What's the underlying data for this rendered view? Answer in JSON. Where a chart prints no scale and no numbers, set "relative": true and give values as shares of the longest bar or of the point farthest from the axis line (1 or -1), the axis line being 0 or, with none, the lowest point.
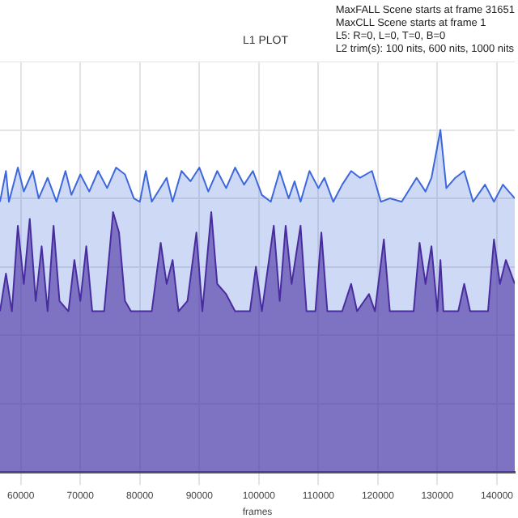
{
  "chart_data": {
    "type": "area",
    "title": "L1 PLOT",
    "xlabel": "frames",
    "relative": true,
    "legend": false,
    "grid": true,
    "marker": "none",
    "line_style": "solid",
    "annotations": [
      "MaxFALL Scene starts at frame 31651",
      "MaxCLL Scene starts at frame 1",
      "L5: R=0, L=0, T=0, B=0",
      "L2 trim(s): 100 nits, 600 nits, 1000 nits"
    ],
    "xlim": [
      56500,
      143000
    ],
    "xticks": [
      60000,
      70000,
      80000,
      90000,
      100000,
      110000,
      120000,
      130000,
      140000
    ],
    "series": [
      {
        "color": "#3d68dd",
        "x": [
          56500,
          57500,
          58000,
          59500,
          60500,
          62000,
          63000,
          64500,
          66000,
          67500,
          68500,
          70000,
          71500,
          73000,
          74500,
          76000,
          77500,
          79000,
          80000,
          81000,
          82000,
          84500,
          85500,
          87000,
          88500,
          90000,
          91500,
          93000,
          94500,
          96000,
          97500,
          99000,
          100500,
          102000,
          103500,
          105000,
          106000,
          107000,
          108500,
          110000,
          111000,
          112500,
          114000,
          115500,
          117000,
          119000,
          120500,
          122000,
          124000,
          126500,
          128000,
          129000,
          130500,
          131500,
          133000,
          134500,
          136000,
          138000,
          139500,
          141000,
          143000
        ],
        "values": [
          0.79,
          0.88,
          0.79,
          0.89,
          0.82,
          0.88,
          0.8,
          0.86,
          0.79,
          0.88,
          0.81,
          0.87,
          0.82,
          0.88,
          0.83,
          0.89,
          0.87,
          0.8,
          0.79,
          0.88,
          0.79,
          0.86,
          0.79,
          0.88,
          0.85,
          0.89,
          0.82,
          0.88,
          0.83,
          0.89,
          0.84,
          0.88,
          0.81,
          0.79,
          0.88,
          0.8,
          0.85,
          0.79,
          0.88,
          0.83,
          0.86,
          0.79,
          0.84,
          0.88,
          0.86,
          0.88,
          0.79,
          0.8,
          0.79,
          0.86,
          0.82,
          0.86,
          1,
          0.83,
          0.86,
          0.88,
          0.79,
          0.84,
          0.79,
          0.84,
          0.8
        ]
      },
      {
        "color": "#4e1a8c",
        "x": [
          56500,
          57500,
          58500,
          59500,
          60500,
          61500,
          62500,
          63500,
          64500,
          65500,
          66500,
          68000,
          69000,
          70000,
          71000,
          72000,
          74000,
          75500,
          76500,
          77500,
          78500,
          80000,
          82000,
          83500,
          84500,
          85500,
          86500,
          88000,
          89500,
          90500,
          92000,
          93000,
          94500,
          96000,
          98500,
          99500,
          100500,
          102500,
          103500,
          104500,
          105500,
          107000,
          108000,
          109500,
          110500,
          111500,
          114000,
          115500,
          116500,
          118500,
          119500,
          121000,
          122000,
          126000,
          127000,
          128000,
          129000,
          130000,
          130500,
          131000,
          133500,
          134500,
          135500,
          138500,
          139500,
          140500,
          141500,
          143000
        ],
        "values": [
          0.47,
          0.58,
          0.47,
          0.72,
          0.55,
          0.74,
          0.5,
          0.66,
          0.47,
          0.72,
          0.5,
          0.47,
          0.62,
          0.5,
          0.66,
          0.47,
          0.47,
          0.76,
          0.7,
          0.5,
          0.47,
          0.47,
          0.47,
          0.67,
          0.55,
          0.62,
          0.47,
          0.5,
          0.7,
          0.47,
          0.76,
          0.55,
          0.52,
          0.47,
          0.47,
          0.6,
          0.47,
          0.72,
          0.5,
          0.72,
          0.55,
          0.72,
          0.47,
          0.47,
          0.7,
          0.47,
          0.47,
          0.55,
          0.47,
          0.52,
          0.47,
          0.68,
          0.47,
          0.47,
          0.67,
          0.55,
          0.66,
          0.47,
          0.62,
          0.47,
          0.47,
          0.55,
          0.47,
          0.47,
          0.68,
          0.55,
          0.62,
          0.55
        ]
      }
    ]
  }
}
